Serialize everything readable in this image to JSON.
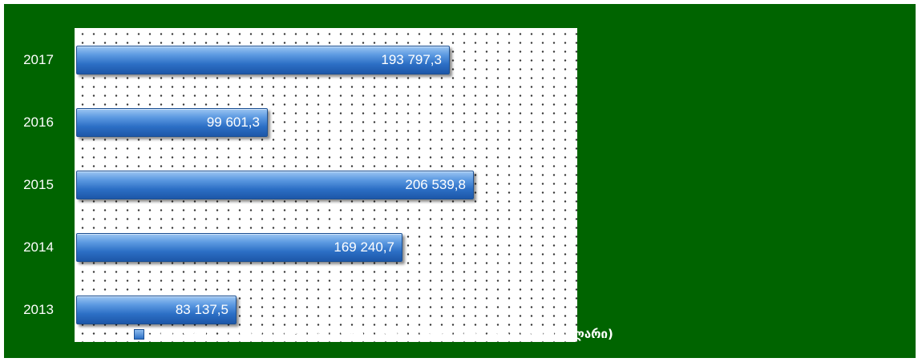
{
  "chart_data": {
    "type": "bar",
    "orientation": "horizontal",
    "categories": [
      "2017",
      "2016",
      "2015",
      "2014",
      "2013"
    ],
    "values": [
      193797.3,
      99601.3,
      206539.8,
      169240.7,
      83137.5
    ],
    "value_labels": [
      "193 797,3",
      "99 601,3",
      "206 539,8",
      "169 240,7",
      "83 137,5"
    ],
    "series": [
      {
        "name": "პირდაპირი უცხოური ინვესტიციები აჭარის რეგიონში (ათასი აშშ დოლარი)",
        "values": [
          193797.3,
          99601.3,
          206539.8,
          169240.7,
          83137.5
        ]
      }
    ],
    "title": "",
    "xlabel": "",
    "ylabel": "",
    "xlim": [
      0,
      261000
    ],
    "grid": false,
    "legend_position": "bottom",
    "colors": {
      "background": "#006400",
      "plot_background": "#ffffff",
      "bar": "#2c6fc5",
      "text": "#ffffff"
    }
  }
}
